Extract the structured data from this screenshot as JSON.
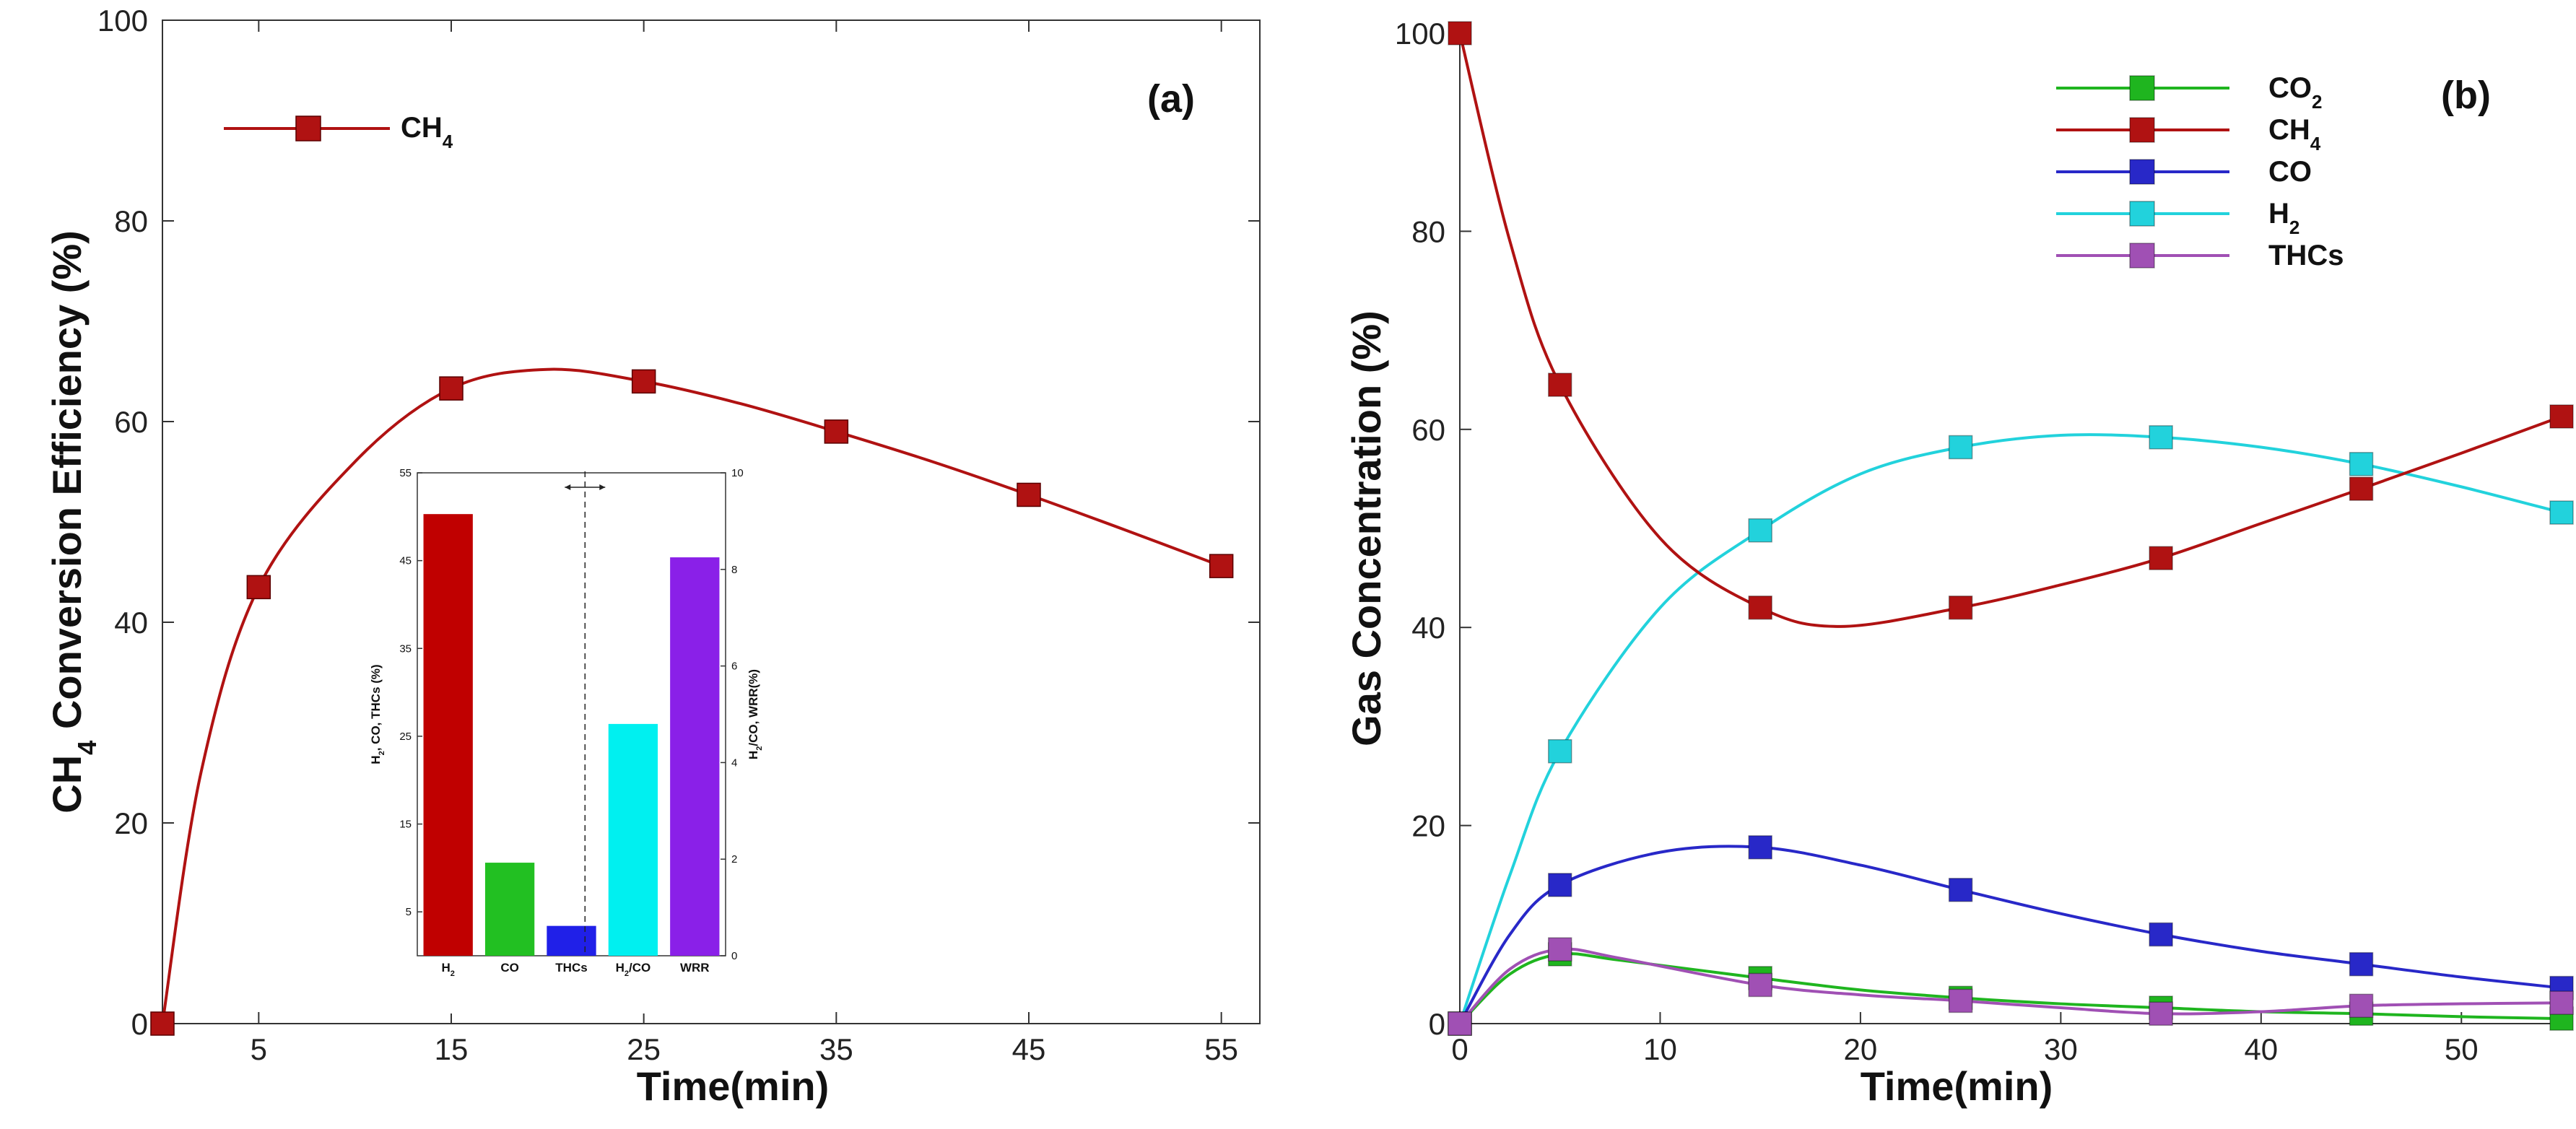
{
  "chart_data": [
    {
      "panel": "(a)",
      "type": "line",
      "xlabel": "Time(min)",
      "ylabel": "Conversion Efficiency (%)",
      "ylabel_prefix": "CH",
      "ylabel_sub": "4",
      "xlim": [
        0,
        57
      ],
      "ylim": [
        0,
        100
      ],
      "xticks": [
        5,
        15,
        25,
        35,
        45,
        55
      ],
      "yticks": [
        0,
        20,
        40,
        60,
        80,
        100
      ],
      "legend_position": "top-left",
      "series": [
        {
          "name": "CH",
          "name_sub": "4",
          "color": "#b01212",
          "x": [
            0,
            5,
            15,
            25,
            35,
            45,
            55
          ],
          "y": [
            0,
            43.5,
            63.3,
            64.0,
            59.0,
            52.7,
            45.6
          ],
          "curve": [
            [
              0,
              0
            ],
            [
              2,
              25
            ],
            [
              5,
              43.5
            ],
            [
              10,
              56
            ],
            [
              15,
              63.3
            ],
            [
              20,
              65.2
            ],
            [
              25,
              64.0
            ],
            [
              30,
              61.8
            ],
            [
              35,
              59.0
            ],
            [
              40,
              56
            ],
            [
              45,
              52.7
            ],
            [
              50,
              49.2
            ],
            [
              55,
              45.6
            ]
          ]
        }
      ],
      "inset": {
        "type": "bar",
        "categories": [
          "H2",
          "CO",
          "THCs",
          "H2/CO",
          "WRR"
        ],
        "category_labels": [
          {
            "main": "H",
            "sub": "2",
            "rest": ""
          },
          {
            "main": "CO",
            "sub": "",
            "rest": ""
          },
          {
            "main": "THCs",
            "sub": "",
            "rest": ""
          },
          {
            "main": "H",
            "sub": "2",
            "rest": "/CO"
          },
          {
            "main": "WRR",
            "sub": "",
            "rest": ""
          }
        ],
        "values": [
          50.3,
          10.6,
          3.4,
          4.8,
          8.25
        ],
        "axis": [
          "left",
          "left",
          "left",
          "right",
          "right"
        ],
        "colors": [
          "#c00000",
          "#22c022",
          "#2020e8",
          "#00f0f0",
          "#8a20e8"
        ],
        "left_ylabel": "H2, CO, THCs (%)",
        "left_ylabel_parts": [
          "H",
          "2",
          ", CO, THCs (%)"
        ],
        "right_ylabel": "H2/CO, WRR(%)",
        "right_ylabel_parts": [
          "H",
          "2",
          "/CO, WRR(%)"
        ],
        "left_ylim": [
          0,
          55
        ],
        "left_yticks": [
          5,
          15,
          25,
          35,
          45,
          55
        ],
        "right_ylim": [
          0,
          10
        ],
        "right_yticks": [
          0,
          2,
          4,
          6,
          8,
          10
        ]
      }
    },
    {
      "panel": "(b)",
      "type": "line",
      "xlabel": "Time(min)",
      "ylabel": "Gas Concentration (%)",
      "xlim": [
        0,
        55
      ],
      "ylim": [
        0,
        100
      ],
      "xticks": [
        0,
        10,
        20,
        30,
        40,
        50
      ],
      "yticks": [
        0,
        20,
        40,
        60,
        80,
        100
      ],
      "legend_position": "top-right",
      "series": [
        {
          "name": "CO",
          "name_sub": "2",
          "color": "#1fb51f",
          "x": [
            0,
            5,
            15,
            25,
            35,
            45,
            55
          ],
          "y": [
            0,
            7.0,
            4.6,
            2.6,
            1.6,
            1.0,
            0.5
          ],
          "curve": [
            [
              0,
              0
            ],
            [
              2.5,
              5
            ],
            [
              5,
              7.0
            ],
            [
              8,
              6.4
            ],
            [
              15,
              4.6
            ],
            [
              20,
              3.4
            ],
            [
              25,
              2.6
            ],
            [
              30,
              2.0
            ],
            [
              35,
              1.6
            ],
            [
              40,
              1.2
            ],
            [
              45,
              1.0
            ],
            [
              50,
              0.7
            ],
            [
              55,
              0.5
            ]
          ]
        },
        {
          "name": "CH",
          "name_sub": "4",
          "color": "#b01212",
          "x": [
            0,
            5,
            15,
            25,
            35,
            45,
            55
          ],
          "y": [
            100,
            64.5,
            42.0,
            42.0,
            47.0,
            54.0,
            61.3
          ],
          "curve": [
            [
              0,
              100
            ],
            [
              2.5,
              79
            ],
            [
              5,
              64.5
            ],
            [
              10,
              49
            ],
            [
              15,
              42
            ],
            [
              19,
              40.1
            ],
            [
              25,
              42
            ],
            [
              30,
              44.3
            ],
            [
              35,
              47
            ],
            [
              40,
              50.5
            ],
            [
              45,
              54
            ],
            [
              50,
              57.6
            ],
            [
              55,
              61.3
            ]
          ]
        },
        {
          "name": "CO",
          "name_sub": "",
          "color": "#2828c8",
          "x": [
            0,
            5,
            15,
            25,
            35,
            45,
            55
          ],
          "y": [
            0,
            14.0,
            17.8,
            13.5,
            9.0,
            6.0,
            3.6
          ],
          "curve": [
            [
              0,
              0
            ],
            [
              2.5,
              9
            ],
            [
              5,
              14
            ],
            [
              10,
              17.3
            ],
            [
              15,
              17.8
            ],
            [
              20,
              16
            ],
            [
              25,
              13.5
            ],
            [
              30,
              11.1
            ],
            [
              35,
              9.0
            ],
            [
              40,
              7.3
            ],
            [
              45,
              6.0
            ],
            [
              50,
              4.7
            ],
            [
              55,
              3.6
            ]
          ]
        },
        {
          "name": "H",
          "name_sub": "2",
          "color": "#22d2dc",
          "x": [
            0,
            5,
            15,
            25,
            35,
            45,
            55
          ],
          "y": [
            0,
            27.5,
            49.8,
            58.2,
            59.2,
            56.5,
            51.6
          ],
          "curve": [
            [
              0,
              0
            ],
            [
              2.5,
              15
            ],
            [
              5,
              27.5
            ],
            [
              10,
              42
            ],
            [
              15,
              49.8
            ],
            [
              20,
              55.5
            ],
            [
              25,
              58.2
            ],
            [
              30,
              59.4
            ],
            [
              35,
              59.2
            ],
            [
              40,
              58.2
            ],
            [
              45,
              56.5
            ],
            [
              50,
              54.2
            ],
            [
              55,
              51.6
            ]
          ]
        },
        {
          "name": "THCs",
          "name_sub": "",
          "color": "#a050b4",
          "x": [
            0,
            5,
            15,
            25,
            35,
            45,
            55
          ],
          "y": [
            0,
            7.5,
            3.9,
            2.3,
            1.0,
            1.8,
            2.1
          ],
          "curve": [
            [
              0,
              0
            ],
            [
              2.5,
              5.5
            ],
            [
              5,
              7.5
            ],
            [
              8,
              6.6
            ],
            [
              15,
              3.9
            ],
            [
              20,
              2.9
            ],
            [
              25,
              2.3
            ],
            [
              30,
              1.6
            ],
            [
              35,
              1.0
            ],
            [
              40,
              1.2
            ],
            [
              45,
              1.8
            ],
            [
              50,
              2.0
            ],
            [
              55,
              2.1
            ]
          ]
        }
      ]
    }
  ]
}
